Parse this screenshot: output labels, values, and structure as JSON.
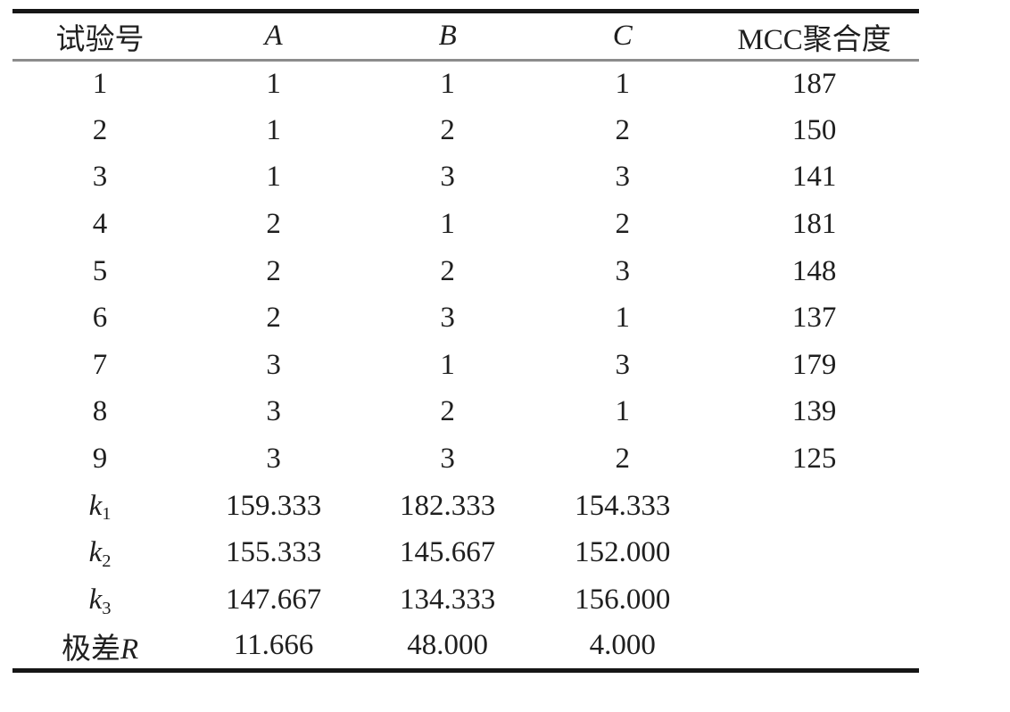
{
  "colors": {
    "background": "#ffffff",
    "text": "#1f1f1f",
    "rule_heavy": "#161616",
    "rule_light": "#8c8c8c"
  },
  "table": {
    "headers": {
      "run": "试验号",
      "a": "A",
      "b": "B",
      "c": "C",
      "mcc": "MCC聚合度"
    },
    "runs": [
      {
        "no": "1",
        "a": "1",
        "b": "1",
        "c": "1",
        "mcc": "187"
      },
      {
        "no": "2",
        "a": "1",
        "b": "2",
        "c": "2",
        "mcc": "150"
      },
      {
        "no": "3",
        "a": "1",
        "b": "3",
        "c": "3",
        "mcc": "141"
      },
      {
        "no": "4",
        "a": "2",
        "b": "1",
        "c": "2",
        "mcc": "181"
      },
      {
        "no": "5",
        "a": "2",
        "b": "2",
        "c": "3",
        "mcc": "148"
      },
      {
        "no": "6",
        "a": "2",
        "b": "3",
        "c": "1",
        "mcc": "137"
      },
      {
        "no": "7",
        "a": "3",
        "b": "1",
        "c": "3",
        "mcc": "179"
      },
      {
        "no": "8",
        "a": "3",
        "b": "2",
        "c": "1",
        "mcc": "139"
      },
      {
        "no": "9",
        "a": "3",
        "b": "3",
        "c": "2",
        "mcc": "125"
      }
    ],
    "k_rows": [
      {
        "base": "k",
        "sub": "1",
        "a": "159.333",
        "b": "182.333",
        "c": "154.333"
      },
      {
        "base": "k",
        "sub": "2",
        "a": "155.333",
        "b": "145.667",
        "c": "152.000"
      },
      {
        "base": "k",
        "sub": "3",
        "a": "147.667",
        "b": "134.333",
        "c": "156.000"
      }
    ],
    "range_row": {
      "prefix": "极差",
      "symbol": "R",
      "a": "11.666",
      "b": "48.000",
      "c": "4.000"
    }
  }
}
